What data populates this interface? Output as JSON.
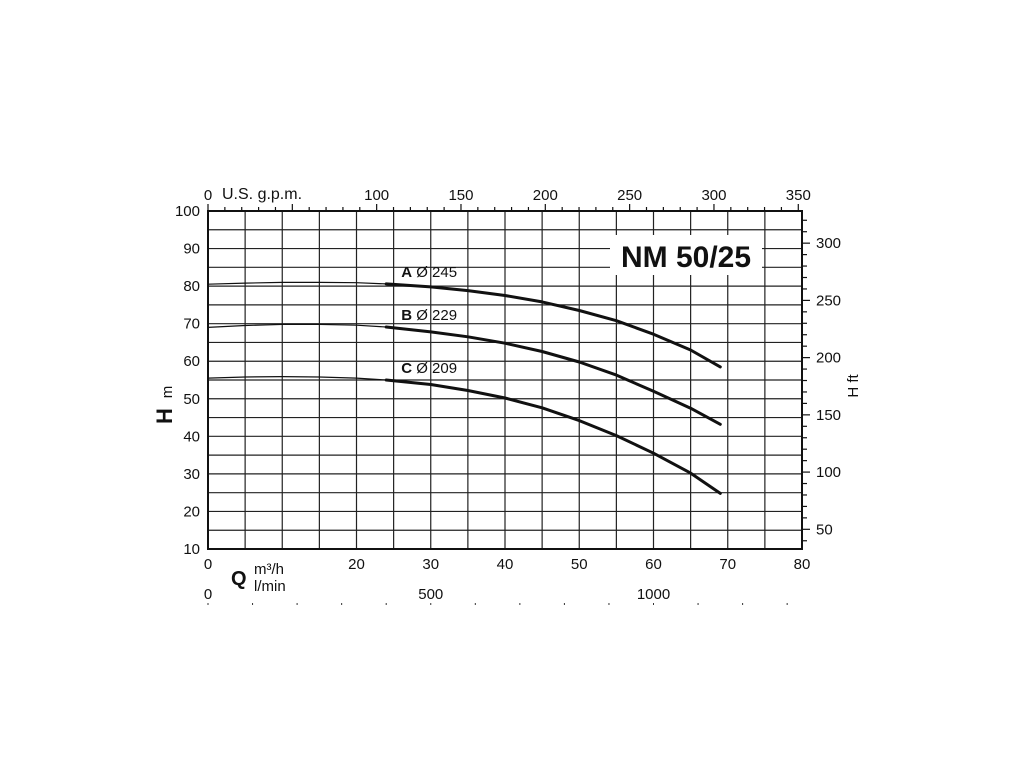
{
  "chart_data": {
    "type": "line",
    "title": "NM 50/25",
    "x_axis": {
      "label_symbol": "Q",
      "unit_primary": "m³/h",
      "unit_secondary": "l/min",
      "range": [
        0,
        80
      ],
      "ticks": [
        0,
        20,
        30,
        40,
        50,
        60,
        70,
        80
      ]
    },
    "x_axis_lmin": {
      "range": [
        0,
        1333.3
      ],
      "ticks": [
        0,
        500,
        1000
      ]
    },
    "x_axis_top": {
      "unit": "U.S. g.p.m.",
      "range": [
        0,
        352.2
      ],
      "ticks": [
        0,
        100,
        150,
        200,
        250,
        300,
        350
      ]
    },
    "y_axis": {
      "label_symbol": "H",
      "unit": "m",
      "range": [
        10,
        100
      ],
      "ticks": [
        10,
        20,
        30,
        40,
        50,
        60,
        70,
        80,
        90,
        100
      ]
    },
    "y_axis_right": {
      "label": "H ft",
      "range": [
        32.8,
        328.1
      ],
      "ticks": [
        50,
        100,
        150,
        200,
        250,
        300
      ]
    },
    "grid": true,
    "series": [
      {
        "letter": "A",
        "name": "Ø 245",
        "x": [
          0,
          5,
          10,
          15,
          20,
          24,
          30,
          35,
          40,
          45,
          50,
          55,
          60,
          65,
          69
        ],
        "y": [
          80.5,
          80.8,
          81,
          81,
          80.9,
          80.6,
          79.8,
          78.8,
          77.5,
          75.8,
          73.5,
          70.8,
          67.2,
          63,
          58.5
        ]
      },
      {
        "letter": "B",
        "name": "Ø 229",
        "x": [
          0,
          5,
          10,
          15,
          20,
          24,
          30,
          35,
          40,
          45,
          50,
          55,
          60,
          65,
          69
        ],
        "y": [
          69,
          69.5,
          69.8,
          69.8,
          69.6,
          69.1,
          67.8,
          66.5,
          64.8,
          62.6,
          59.8,
          56.3,
          52,
          47.5,
          43.2
        ]
      },
      {
        "letter": "C",
        "name": "Ø 209",
        "x": [
          0,
          5,
          10,
          15,
          20,
          24,
          30,
          35,
          40,
          45,
          50,
          55,
          60,
          65,
          69
        ],
        "y": [
          55.5,
          55.8,
          55.9,
          55.8,
          55.5,
          55,
          53.8,
          52.2,
          50.2,
          47.6,
          44.2,
          40.2,
          35.5,
          30.2,
          24.8
        ]
      }
    ]
  }
}
